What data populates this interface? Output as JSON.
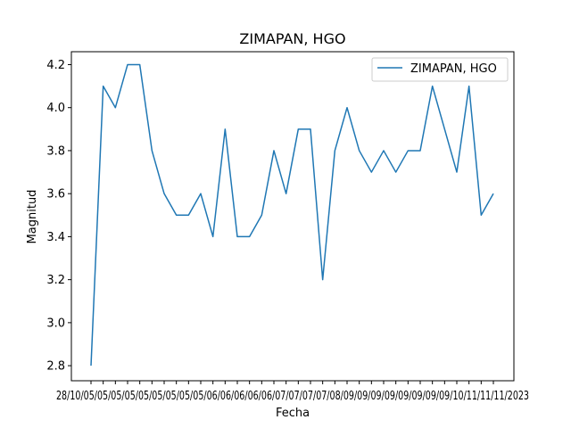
{
  "chart_data": {
    "type": "line",
    "title": "ZIMAPAN, HGO",
    "xlabel": "Fecha",
    "ylabel": "Magnitud",
    "ylim": [
      2.73,
      4.26
    ],
    "yticks": [
      "2.8",
      "3.0",
      "3.2",
      "3.4",
      "3.6",
      "3.8",
      "4.0",
      "4.2"
    ],
    "xtick_text": "28/10/05/05/05/05/05/05/05/05/05/06/06/06/06/06/07/07/07/07/08/09/09/09/09/09/09/09/09/10/11/11/11/2023",
    "legend": {
      "placement": "upper right"
    },
    "grid": false,
    "series": [
      {
        "name": "ZIMAPAN, HGO",
        "color": "#1f77b4",
        "values": [
          2.8,
          4.1,
          4.0,
          4.2,
          4.2,
          3.8,
          3.6,
          3.5,
          3.5,
          3.6,
          3.4,
          3.9,
          3.4,
          3.4,
          3.5,
          3.8,
          3.6,
          3.9,
          3.9,
          3.2,
          3.8,
          4.0,
          3.8,
          3.7,
          3.8,
          3.7,
          3.8,
          3.8,
          4.1,
          3.9,
          3.7,
          4.1,
          3.5,
          3.6
        ]
      }
    ]
  }
}
